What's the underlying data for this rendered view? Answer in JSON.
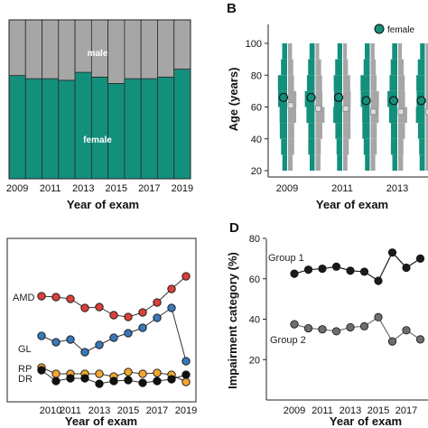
{
  "colors": {
    "teal": "#13907c",
    "gray": "#a6a6a6",
    "red": "#d9413a",
    "blue": "#3b78b8",
    "orange": "#f2a731",
    "black": "#111111",
    "darkgray": "#6e6e6e"
  },
  "chart_data": [
    {
      "panel": "A",
      "type": "bar",
      "stacked": true,
      "categories": [
        2009,
        2010,
        2011,
        2012,
        2013,
        2014,
        2015,
        2016,
        2017,
        2018,
        2019
      ],
      "series": [
        {
          "name": "female",
          "values": [
            0.65,
            0.63,
            0.63,
            0.62,
            0.67,
            0.64,
            0.6,
            0.63,
            0.63,
            0.64,
            0.69
          ]
        },
        {
          "name": "male",
          "values": [
            0.35,
            0.37,
            0.37,
            0.38,
            0.33,
            0.36,
            0.4,
            0.37,
            0.37,
            0.36,
            0.31
          ]
        }
      ],
      "ylim": [
        0,
        1
      ],
      "tick_labels": [
        "2009",
        "2011",
        "2013",
        "2015",
        "2017",
        "2019"
      ],
      "xlabel": "Year of exam",
      "annotations": [
        "male",
        "female"
      ]
    },
    {
      "panel": "B",
      "type": "scatter",
      "panel_label": "B",
      "years": [
        2009,
        2010,
        2011,
        2012,
        2013,
        2014,
        2015,
        2016,
        2017,
        2018
      ],
      "female_median_age": [
        66,
        66,
        66,
        64,
        64,
        64,
        65,
        64,
        66,
        67
      ],
      "male_median_age": [
        61,
        59,
        59,
        57,
        57,
        57,
        58,
        58,
        59,
        60
      ],
      "ylim": [
        0,
        110
      ],
      "y_ticks": [
        "0",
        "20",
        "40",
        "60",
        "80",
        "100"
      ],
      "tick_labels": [
        "2009",
        "2011",
        "2013",
        "2015",
        "2017"
      ],
      "ylabel": "Age (years)",
      "xlabel": "Year of exam",
      "legend": [
        "female"
      ]
    },
    {
      "panel": "C",
      "type": "line",
      "x": [
        2009,
        2010,
        2011,
        2012,
        2013,
        2014,
        2015,
        2016,
        2017,
        2018,
        2019
      ],
      "series": [
        {
          "name": "AMD",
          "values": [
            44.0,
            43.5,
            42.5,
            37.5,
            38.0,
            33.5,
            32.5,
            35.0,
            40.5,
            48.0,
            55.0
          ]
        },
        {
          "name": "GL",
          "values": [
            22.0,
            18.5,
            20.0,
            13.0,
            17.0,
            21.0,
            23.5,
            26.5,
            32.0,
            37.5,
            8.0
          ]
        },
        {
          "name": "RP",
          "values": [
            4.5,
            1.0,
            1.0,
            1.0,
            1.0,
            -0.5,
            2.0,
            1.0,
            1.5,
            0.5,
            -3.5
          ]
        },
        {
          "name": "DR",
          "values": [
            3.0,
            -3.0,
            -1.5,
            -1.5,
            -4.5,
            -3.0,
            -2.5,
            -4.0,
            -3.0,
            -2.0,
            0.5
          ]
        }
      ],
      "tick_labels": [
        "2010",
        "2011",
        "2013",
        "2015",
        "2017",
        "2019"
      ],
      "xlabel": "Year of exam"
    },
    {
      "panel": "D",
      "type": "line",
      "panel_label": "D",
      "x": [
        2009,
        2010,
        2011,
        2012,
        2013,
        2014,
        2015,
        2016,
        2017,
        2018
      ],
      "series": [
        {
          "name": "Group 1",
          "values": [
            62.5,
            64.5,
            65.0,
            66.0,
            64.0,
            63.5,
            59.0,
            73.0,
            65.5,
            70.0
          ]
        },
        {
          "name": "Group 2",
          "values": [
            37.5,
            35.5,
            35.0,
            34.0,
            36.0,
            36.5,
            41.0,
            29.0,
            34.5,
            30.0
          ]
        }
      ],
      "ylim": [
        0,
        80
      ],
      "y_ticks": [
        "20",
        "40",
        "60",
        "80"
      ],
      "tick_labels": [
        "2009",
        "2011",
        "2013",
        "2015",
        "2017"
      ],
      "ylabel": "Impairment category (%)",
      "xlabel": "Year of exam",
      "annotations": [
        "Group 1",
        "Group 2"
      ]
    }
  ]
}
